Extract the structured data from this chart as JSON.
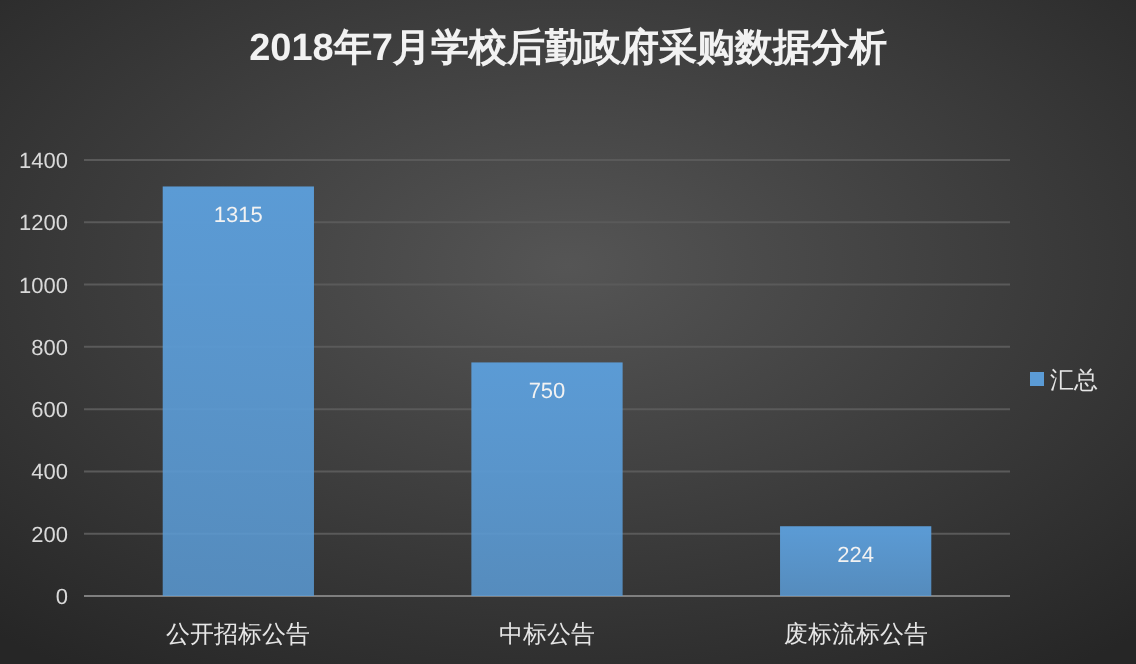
{
  "chart_data": {
    "type": "bar",
    "title": "2018年7月学校后勤政府采购数据分析",
    "categories": [
      "公开招标公告",
      "中标公告",
      "废标流标公告"
    ],
    "series": [
      {
        "name": "汇总",
        "color": "#5b9bd5",
        "values": [
          1315,
          750,
          224
        ]
      }
    ],
    "ylim": [
      0,
      1400
    ],
    "yticks": [
      0,
      200,
      400,
      600,
      800,
      1000,
      1200,
      1400
    ],
    "grid": "y",
    "legend": "right",
    "data_labels": true
  }
}
